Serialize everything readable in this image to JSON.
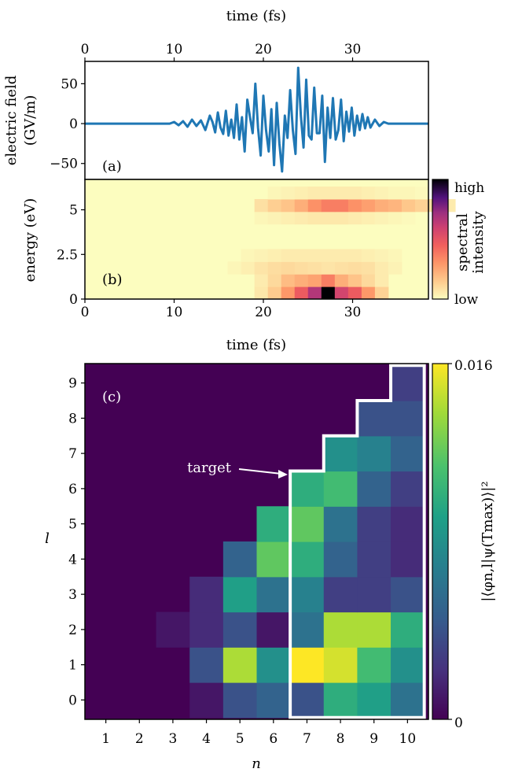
{
  "chart_data": [
    {
      "id": "a",
      "type": "line",
      "panel_label": "(a)",
      "top_xlabel": "time (fs)",
      "ylabel_lines": [
        "electric field",
        "(GV/m)"
      ],
      "xlim": [
        0,
        38.5
      ],
      "ylim": [
        -70,
        78
      ],
      "xticks": [
        0,
        10,
        20,
        30
      ],
      "yticks": [
        {
          "v": 50,
          "t": "50"
        },
        {
          "v": 0,
          "t": "0"
        },
        {
          "v": -50,
          "t": "−50"
        }
      ],
      "line_color": "#1f77b4",
      "series": [
        {
          "x": [
            0,
            1,
            2,
            3,
            4,
            5,
            6,
            7,
            8,
            9,
            9.5,
            10,
            10.5,
            11,
            11.5,
            12,
            12.5,
            13,
            13.5,
            14,
            14.3,
            14.6,
            14.9,
            15.2,
            15.5,
            15.8,
            16.1,
            16.4,
            16.7,
            17,
            17.3,
            17.6,
            17.9,
            18.2,
            18.5,
            18.8,
            19.1,
            19.4,
            19.7,
            20,
            20.3,
            20.6,
            20.9,
            21.2,
            21.5,
            21.8,
            22.1,
            22.4,
            22.7,
            23,
            23.3,
            23.6,
            23.9,
            24.2,
            24.5,
            24.8,
            25.1,
            25.4,
            25.7,
            26,
            26.3,
            26.6,
            26.9,
            27.2,
            27.5,
            27.8,
            28.1,
            28.4,
            28.7,
            29,
            29.3,
            29.6,
            29.9,
            30.2,
            30.5,
            30.8,
            31.1,
            31.4,
            31.7,
            32,
            32.5,
            33,
            33.5,
            34,
            34.5,
            35,
            35.5,
            36,
            37,
            38.5
          ],
          "y": [
            0,
            0,
            0,
            0,
            0,
            0,
            0,
            0,
            0,
            0,
            0,
            2,
            -2,
            3,
            -4,
            5,
            -3,
            4,
            -8,
            10,
            2,
            -11,
            14,
            -5,
            -13,
            16,
            -15,
            5,
            -18,
            24,
            -20,
            8,
            -35,
            30,
            8,
            -12,
            50,
            -5,
            -40,
            35,
            -8,
            -35,
            18,
            -52,
            26,
            -25,
            -60,
            10,
            -18,
            42,
            -8,
            -38,
            70,
            10,
            -30,
            55,
            -15,
            -20,
            45,
            -12,
            -12,
            35,
            -48,
            20,
            -18,
            32,
            -20,
            -8,
            30,
            -22,
            15,
            -10,
            20,
            -15,
            10,
            -8,
            12,
            -6,
            8,
            -5,
            5,
            -3,
            2,
            0,
            0,
            0,
            0,
            0,
            0,
            0
          ]
        }
      ]
    },
    {
      "id": "b",
      "type": "heatmap",
      "panel_label": "(b)",
      "xlabel": "time (fs)",
      "ylabel": "energy (eV)",
      "xlim": [
        0,
        38.5
      ],
      "ylim": [
        0,
        6.7
      ],
      "xticks": [
        0,
        10,
        20,
        30
      ],
      "yticks": [
        {
          "v": 0,
          "t": "0"
        },
        {
          "v": 2.5,
          "t": "2.5"
        },
        {
          "v": 5,
          "t": "5"
        }
      ],
      "colorbar": {
        "label_lines": [
          "spectral",
          "intensity"
        ],
        "high": "high",
        "low": "low"
      },
      "x_bin_start": 10,
      "x_bin_width": 1.5,
      "y_bin_start": 0,
      "y_bin_height": 0.7,
      "cells": [
        [
          0,
          0,
          0,
          0,
          0,
          0,
          0.06,
          0.14,
          0.28,
          0.45,
          0.65,
          1.0,
          0.55,
          0.45,
          0.28,
          0.12,
          0,
          0,
          0,
          0,
          0,
          0
        ],
        [
          0,
          0,
          0,
          0,
          0,
          0,
          0.05,
          0.1,
          0.18,
          0.22,
          0.25,
          0.35,
          0.22,
          0.16,
          0.1,
          0.05,
          0,
          0,
          0,
          0,
          0,
          0
        ],
        [
          0,
          0,
          0,
          0,
          0.02,
          0.04,
          0.07,
          0.09,
          0.1,
          0.09,
          0.08,
          0.07,
          0.08,
          0.09,
          0.08,
          0.05,
          0.03,
          0,
          0,
          0,
          0,
          0
        ],
        [
          0,
          0,
          0,
          0,
          0,
          0.02,
          0.03,
          0.04,
          0.05,
          0.05,
          0.05,
          0.05,
          0.05,
          0.05,
          0.04,
          0.03,
          0.02,
          0,
          0,
          0,
          0,
          0
        ],
        [
          0,
          0,
          0,
          0,
          0,
          0,
          0,
          0,
          0,
          0,
          0,
          0,
          0,
          0,
          0,
          0,
          0,
          0,
          0,
          0,
          0,
          0
        ],
        [
          0,
          0,
          0,
          0,
          0,
          0,
          0,
          0,
          0,
          0,
          0,
          0,
          0,
          0,
          0,
          0,
          0,
          0,
          0,
          0,
          0,
          0
        ],
        [
          0,
          0,
          0,
          0,
          0,
          0,
          0.02,
          0.03,
          0.04,
          0.05,
          0.06,
          0.06,
          0.06,
          0.05,
          0.04,
          0.03,
          0.02,
          0.01,
          0,
          0,
          0,
          0
        ],
        [
          0,
          0,
          0,
          0,
          0,
          0,
          0.08,
          0.13,
          0.16,
          0.22,
          0.3,
          0.35,
          0.35,
          0.3,
          0.26,
          0.22,
          0.2,
          0.15,
          0.12,
          0.08,
          0.05,
          0
        ],
        [
          0,
          0,
          0,
          0,
          0,
          0,
          0,
          0.02,
          0.03,
          0.04,
          0.05,
          0.05,
          0.05,
          0.05,
          0.04,
          0.03,
          0.02,
          0.02,
          0.01,
          0,
          0,
          0
        ],
        [
          0,
          0,
          0,
          0,
          0,
          0,
          0,
          0,
          0,
          0,
          0,
          0,
          0,
          0,
          0,
          0,
          0,
          0,
          0,
          0,
          0,
          0
        ]
      ]
    },
    {
      "id": "c",
      "type": "heatmap",
      "panel_label": "(c)",
      "xlabel": "n",
      "ylabel": "l",
      "x_categories": [
        "1",
        "2",
        "3",
        "4",
        "5",
        "6",
        "7",
        "8",
        "9",
        "10"
      ],
      "y_categories": [
        "0",
        "1",
        "2",
        "3",
        "4",
        "5",
        "6",
        "7",
        "8",
        "9"
      ],
      "colorbar": {
        "label": "|⟨φn,l|ψ(Tmax)⟩|²",
        "max_label": "0.016",
        "min_label": "0",
        "range": [
          0,
          0.016
        ]
      },
      "annotation": "target",
      "target_region": "n ≥ 7",
      "values": [
        [
          0,
          0,
          0,
          0.001,
          0.004,
          0.005,
          0.004,
          0.01,
          0.009,
          0.006
        ],
        [
          0,
          0,
          0,
          0.004,
          0.014,
          0.008,
          0.016,
          0.015,
          0.011,
          0.008
        ],
        [
          0,
          0,
          0.001,
          0.002,
          0.004,
          0.001,
          0.006,
          0.014,
          0.014,
          0.01
        ],
        [
          0,
          0,
          0,
          0.002,
          0.009,
          0.006,
          0.007,
          0.003,
          0.003,
          0.004
        ],
        [
          0,
          0,
          0,
          0,
          0.005,
          0.012,
          0.01,
          0.005,
          0.003,
          0.002
        ],
        [
          0,
          0,
          0,
          0,
          0,
          0.01,
          0.012,
          0.006,
          0.003,
          0.002
        ],
        [
          0,
          0,
          0,
          0,
          0,
          0,
          0.01,
          0.011,
          0.005,
          0.003
        ],
        [
          0,
          0,
          0,
          0,
          0,
          0,
          0,
          0.008,
          0.007,
          0.005
        ],
        [
          0,
          0,
          0,
          0,
          0,
          0,
          0,
          0,
          0.004,
          0.004
        ],
        [
          0,
          0,
          0,
          0,
          0,
          0,
          0,
          0,
          0,
          0.003
        ]
      ]
    }
  ]
}
